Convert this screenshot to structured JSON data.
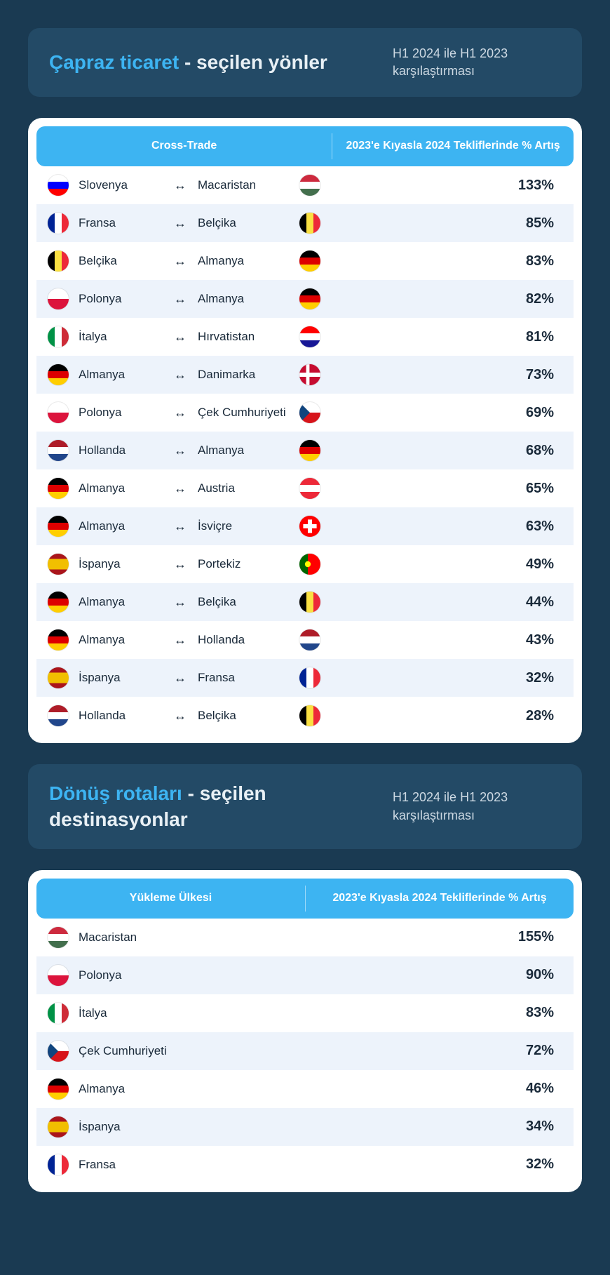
{
  "colors": {
    "page_bg": "#1a3a52",
    "header_bg": "#234a66",
    "accent": "#3db4f2",
    "white": "#ffffff",
    "row_alt": "#edf3fb",
    "text_dark": "#1a2a3a",
    "subtext": "#cdd9e3"
  },
  "section1": {
    "title_accent": "Çapraz ticaret",
    "title_rest": " - seçilen yönler",
    "subtitle": "H1 2024 ile H1 2023 karşılaştırması",
    "col1": "Cross-Trade",
    "col2": "2023'e Kıyasla 2024 Tekliflerinde % Artış",
    "arrow_glyph": "↔",
    "rows": [
      {
        "from": "Slovenya",
        "from_flag": "si",
        "to": "Macaristan",
        "to_flag": "hu",
        "pct": "133%"
      },
      {
        "from": "Fransa",
        "from_flag": "fr",
        "to": "Belçika",
        "to_flag": "be",
        "pct": "85%"
      },
      {
        "from": "Belçika",
        "from_flag": "be",
        "to": "Almanya",
        "to_flag": "de",
        "pct": "83%"
      },
      {
        "from": "Polonya",
        "from_flag": "pl",
        "to": "Almanya",
        "to_flag": "de",
        "pct": "82%"
      },
      {
        "from": "İtalya",
        "from_flag": "it",
        "to": "Hırvatistan",
        "to_flag": "hr",
        "pct": "81%"
      },
      {
        "from": "Almanya",
        "from_flag": "de",
        "to": "Danimarka",
        "to_flag": "dk",
        "pct": "73%"
      },
      {
        "from": "Polonya",
        "from_flag": "pl",
        "to": "Çek Cumhuriyeti",
        "to_flag": "cz",
        "pct": "69%"
      },
      {
        "from": "Hollanda",
        "from_flag": "nl",
        "to": "Almanya",
        "to_flag": "de",
        "pct": "68%"
      },
      {
        "from": "Almanya",
        "from_flag": "de",
        "to": "Austria",
        "to_flag": "at",
        "pct": "65%"
      },
      {
        "from": "Almanya",
        "from_flag": "de",
        "to": "İsviçre",
        "to_flag": "ch",
        "pct": "63%"
      },
      {
        "from": "İspanya",
        "from_flag": "es",
        "to": "Portekiz",
        "to_flag": "pt",
        "pct": "49%"
      },
      {
        "from": "Almanya",
        "from_flag": "de",
        "to": "Belçika",
        "to_flag": "be",
        "pct": "44%"
      },
      {
        "from": "Almanya",
        "from_flag": "de",
        "to": "Hollanda",
        "to_flag": "nl",
        "pct": "43%"
      },
      {
        "from": "İspanya",
        "from_flag": "es",
        "to": "Fransa",
        "to_flag": "fr",
        "pct": "32%"
      },
      {
        "from": "Hollanda",
        "from_flag": "nl",
        "to": "Belçika",
        "to_flag": "be",
        "pct": "28%"
      }
    ]
  },
  "section2": {
    "title_accent": "Dönüş rotaları",
    "title_rest": " - seçilen destinasyonlar",
    "subtitle": "H1 2024 ile H1 2023 karşılaştırması",
    "col1": "Yükleme Ülkesi",
    "col2": "2023'e Kıyasla 2024 Tekliflerinde % Artış",
    "rows": [
      {
        "country": "Macaristan",
        "flag": "hu",
        "pct": "155%"
      },
      {
        "country": "Polonya",
        "flag": "pl",
        "pct": "90%"
      },
      {
        "country": "İtalya",
        "flag": "it",
        "pct": "83%"
      },
      {
        "country": "Çek Cumhuriyeti",
        "flag": "cz",
        "pct": "72%"
      },
      {
        "country": "Almanya",
        "flag": "de",
        "pct": "46%"
      },
      {
        "country": "İspanya",
        "flag": "es",
        "pct": "34%"
      },
      {
        "country": "Fransa",
        "flag": "fr",
        "pct": "32%"
      }
    ]
  },
  "flags": {
    "si": [
      [
        "h",
        "#ffffff",
        0,
        33.3
      ],
      [
        "h",
        "#0000ff",
        33.3,
        33.4
      ],
      [
        "h",
        "#ff0000",
        66.7,
        33.3
      ]
    ],
    "hu": [
      [
        "h",
        "#cd2a3e",
        0,
        33.3
      ],
      [
        "h",
        "#ffffff",
        33.3,
        33.4
      ],
      [
        "h",
        "#436f4d",
        66.7,
        33.3
      ]
    ],
    "fr": [
      [
        "v",
        "#002395",
        0,
        33.3
      ],
      [
        "v",
        "#ffffff",
        33.3,
        33.4
      ],
      [
        "v",
        "#ed2939",
        66.7,
        33.3
      ]
    ],
    "be": [
      [
        "v",
        "#000000",
        0,
        33.3
      ],
      [
        "v",
        "#fae042",
        33.3,
        33.4
      ],
      [
        "v",
        "#ed2939",
        66.7,
        33.3
      ]
    ],
    "de": [
      [
        "h",
        "#000000",
        0,
        33.3
      ],
      [
        "h",
        "#dd0000",
        33.3,
        33.4
      ],
      [
        "h",
        "#ffce00",
        66.7,
        33.3
      ]
    ],
    "pl": [
      [
        "h",
        "#ffffff",
        0,
        50
      ],
      [
        "h",
        "#dc143c",
        50,
        50
      ]
    ],
    "it": [
      [
        "v",
        "#009246",
        0,
        33.3
      ],
      [
        "v",
        "#ffffff",
        33.3,
        33.4
      ],
      [
        "v",
        "#ce2b37",
        66.7,
        33.3
      ]
    ],
    "hr": [
      [
        "h",
        "#ff0000",
        0,
        33.3
      ],
      [
        "h",
        "#ffffff",
        33.3,
        33.4
      ],
      [
        "h",
        "#171796",
        66.7,
        33.3
      ]
    ],
    "dk": [
      [
        "full",
        "#c60c30"
      ],
      [
        "rect",
        "#ffffff",
        0,
        40,
        100,
        20
      ],
      [
        "rect",
        "#ffffff",
        32,
        0,
        16,
        100
      ]
    ],
    "cz": [
      [
        "h",
        "#ffffff",
        0,
        50
      ],
      [
        "h",
        "#d7141a",
        50,
        50
      ],
      [
        "tri",
        "#11457e"
      ]
    ],
    "nl": [
      [
        "h",
        "#ae1c28",
        0,
        33.3
      ],
      [
        "h",
        "#ffffff",
        33.3,
        33.4
      ],
      [
        "h",
        "#21468b",
        66.7,
        33.3
      ]
    ],
    "at": [
      [
        "h",
        "#ed2939",
        0,
        33.3
      ],
      [
        "h",
        "#ffffff",
        33.3,
        33.4
      ],
      [
        "h",
        "#ed2939",
        66.7,
        33.3
      ]
    ],
    "ch": [
      [
        "full",
        "#ff0000"
      ],
      [
        "rect",
        "#ffffff",
        40,
        18,
        20,
        64
      ],
      [
        "rect",
        "#ffffff",
        18,
        40,
        64,
        20
      ]
    ],
    "es": [
      [
        "h",
        "#aa151b",
        0,
        25
      ],
      [
        "h",
        "#f1bf00",
        25,
        50
      ],
      [
        "h",
        "#aa151b",
        75,
        25
      ]
    ],
    "pt": [
      [
        "v",
        "#006600",
        0,
        40
      ],
      [
        "v",
        "#ff0000",
        40,
        60
      ],
      [
        "circ",
        "#ffff00",
        40,
        50,
        14
      ]
    ]
  }
}
